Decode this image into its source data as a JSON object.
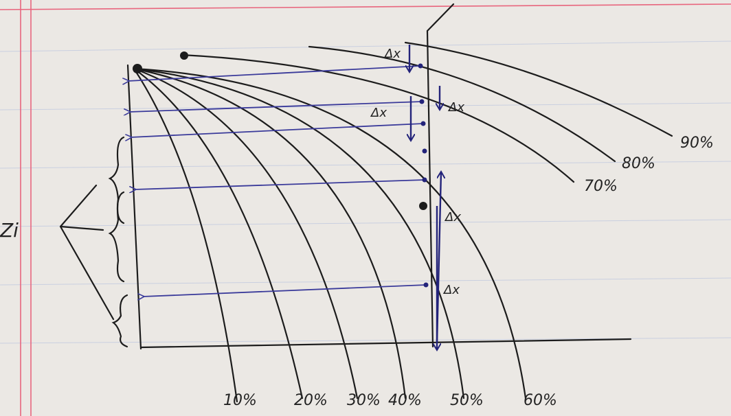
{
  "curve_labels": [
    "10%",
    "20%",
    "30%",
    "40%",
    "50%",
    "60%",
    "70%",
    "80%",
    "90%"
  ],
  "delta_labels": [
    "Δx",
    "Δx",
    "Δx",
    "Δx",
    "Δx"
  ],
  "depth_label": "Zi"
}
